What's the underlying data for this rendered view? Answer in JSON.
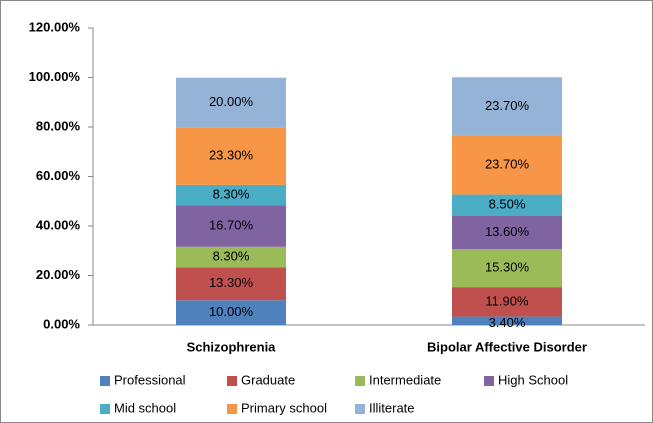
{
  "chart_data": {
    "type": "stacked_bar",
    "categories": [
      "Schizophrenia",
      "Bipolar Affective Disorder"
    ],
    "series": [
      {
        "name": "Professional",
        "color": "#4f81bd",
        "values": [
          10.0,
          3.4
        ],
        "value_labels": [
          "10.00%",
          "3.40%"
        ]
      },
      {
        "name": "Graduate",
        "color": "#c0504d",
        "values": [
          13.3,
          11.9
        ],
        "value_labels": [
          "13.30%",
          "11.90%"
        ]
      },
      {
        "name": "Intermediate",
        "color": "#9bbb59",
        "values": [
          8.3,
          15.3
        ],
        "value_labels": [
          "8.30%",
          "15.30%"
        ]
      },
      {
        "name": "High School",
        "color": "#8064a2",
        "values": [
          16.7,
          13.6
        ],
        "value_labels": [
          "16.70%",
          "13.60%"
        ]
      },
      {
        "name": "Mid school",
        "color": "#4bacc6",
        "values": [
          8.3,
          8.5
        ],
        "value_labels": [
          "8.30%",
          "8.50%"
        ]
      },
      {
        "name": "Primary school",
        "color": "#f79646",
        "values": [
          23.3,
          23.7
        ],
        "value_labels": [
          "23.30%",
          "23.70%"
        ]
      },
      {
        "name": "Illiterate",
        "color": "#95b3d7",
        "values": [
          20.0,
          23.7
        ],
        "value_labels": [
          "20.00%",
          "23.70%"
        ]
      }
    ],
    "ylim": [
      0,
      120
    ],
    "yticks": [
      {
        "value": 0,
        "label": "0.00%"
      },
      {
        "value": 20,
        "label": "20.00%"
      },
      {
        "value": 40,
        "label": "40.00%"
      },
      {
        "value": 60,
        "label": "60.00%"
      },
      {
        "value": 80,
        "label": "80.00%"
      },
      {
        "value": 100,
        "label": "100.00%"
      },
      {
        "value": 120,
        "label": "120.00%"
      }
    ],
    "legend": "bottom"
  }
}
